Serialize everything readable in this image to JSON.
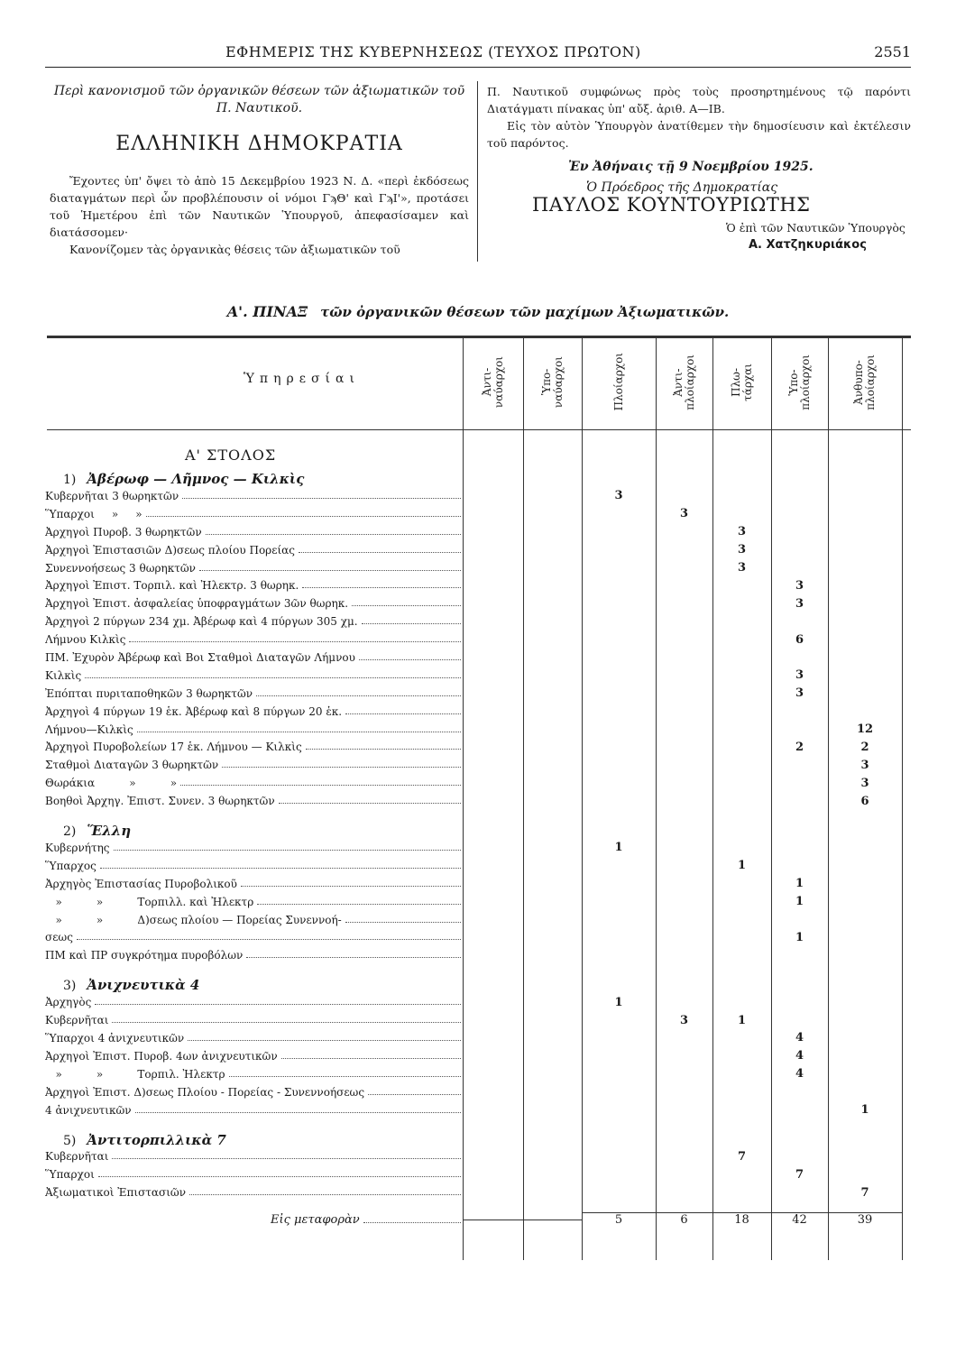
{
  "header": {
    "title": "ΕΦΗΜΕΡΙΣ ΤΗΣ ΚΥΒΕΡΝΗΣΕΩΣ (ΤΕΥΧΟΣ ΠΡΩΤΟΝ)",
    "page": "2551"
  },
  "decree": {
    "subject": "Περὶ κανονισμοῦ τῶν ὀργανικῶν θέσεων τῶν ἀξιωματικῶν τοῦ Π. Ναυτικοῦ.",
    "republic": "ΕΛΛΗΝΙΚΗ ΔΗΜΟΚΡΑΤΙΑ",
    "para1": "Ἔχοντες ὑπ' ὄψει τὸ ἀπὸ 15 Δεκεμβρίου 1923 Ν. Δ. «περὶ ἐκδόσεως διαταγμάτων περὶ ὧν προβλέπουσιν οἱ νόμοι ΓϡΘ' καὶ ΓϡΙ'», προτάσει τοῦ Ἡμετέρου ἐπὶ τῶν Ναυτικῶν Ὑπουργοῦ, ἀπεφασίσαμεν καὶ διατάσσομεν·",
    "para2a": "Κανονίζομεν τὰς ὀργανικὰς θέσεις τῶν ἀξιωματικῶν τοῦ",
    "para2b": "Π. Ναυτικοῦ συμφώνως πρὸς τοὺς προσηρτημένους τῷ παρόντι Διατάγματι πίνακας ὑπ' αὔξ. ἀριθ. Α—ΙΒ.",
    "para3": "Εἰς τὸν αὐτὸν Ὑπουργὸν ἀνατίθεμεν τὴν δημοσίευσιν καὶ ἐκτέλεσιν τοῦ παρόντος.",
    "place_date": "Ἐν Ἀθήναις τῇ 9 Νοεμβρίου 1925.",
    "president_title": "Ὁ Πρόεδρος τῆς Δημοκρατίας",
    "president_name": "ΠΑΥΛΟΣ ΚΟΥΝΤΟΥΡΙΩΤΗΣ",
    "minister_title": "Ὁ ἐπὶ τῶν Ναυτικῶν Ὑπουργὸς",
    "minister_name": "Α. Χατζηκυριάκος"
  },
  "table": {
    "title_prefix": "Α'. ΠΙΝΑΞ",
    "title": "τῶν ὀργανικῶν θέσεων τῶν μαχίμων Ἀξιωματικῶν.",
    "services_header": "Ὑπηρεσίαι",
    "columns": [
      "Ἀντι-\nναύαρχοι",
      "Ὑπο-\nναύαρχοι",
      "Πλοίαρχοι",
      "Ἀντι-\nπλοίαρχοι",
      "Πλω-\nτάρχαι",
      "Ὑπο-\nπλοίαρχοι",
      "Ἀνθυπο-\nπλοίαρχοι"
    ],
    "fleet": "Α' ΣΤΟΛΟΣ",
    "sections": [
      {
        "num": "1)",
        "name": "Ἀβέρωφ — Λῆμνος — Κιλκὶς",
        "rows": [
          {
            "label": "Κυβερνῆται 3 θωρηκτῶν",
            "values": [
              "",
              "",
              "3",
              "",
              "",
              "",
              ""
            ]
          },
          {
            "label": "Ὕπαρχοι     »     »",
            "values": [
              "",
              "",
              "",
              "3",
              "",
              "",
              ""
            ]
          },
          {
            "label": "Ἀρχηγοὶ Πυροβ. 3 θωρηκτῶν",
            "values": [
              "",
              "",
              "",
              "",
              "3",
              "",
              ""
            ]
          },
          {
            "label": "Ἀρχηγοὶ Ἐπιστασιῶν Δ)σεως πλοίου Πορείας",
            "values": [
              "",
              "",
              "",
              "",
              "3",
              "",
              ""
            ]
          },
          {
            "label": "Συνεννοήσεως 3 θωρηκτῶν",
            "values": [
              "",
              "",
              "",
              "",
              "3",
              "",
              ""
            ]
          },
          {
            "label": "Ἀρχηγοὶ Ἐπιστ. Τορπιλ. καὶ Ἠλεκτρ. 3 θωρηκ.",
            "values": [
              "",
              "",
              "",
              "",
              "",
              "3",
              ""
            ]
          },
          {
            "label": "Ἀρχηγοὶ Ἐπιστ. ἀσφαλείας ὑποφραγμάτων 3ῶν θωρηκ.",
            "values": [
              "",
              "",
              "",
              "",
              "",
              "3",
              ""
            ]
          },
          {
            "label": "Ἀρχηγοὶ 2 πύργων 234 χμ. Ἀβέρωφ καὶ 4 πύργων 305 χμ.",
            "values": [
              "",
              "",
              "",
              "",
              "",
              "",
              ""
            ]
          },
          {
            "label": "Λήμνου Κιλκὶς",
            "cont": true,
            "values": [
              "",
              "",
              "",
              "",
              "",
              "6",
              ""
            ]
          },
          {
            "label": "ΠΜ. Ἐχυρὸν Ἀβέρωφ καὶ Βοι Σταθμοὶ Διαταγῶν Λήμνου",
            "values": [
              "",
              "",
              "",
              "",
              "",
              "",
              ""
            ]
          },
          {
            "label": "Κιλκὶς",
            "cont": true,
            "values": [
              "",
              "",
              "",
              "",
              "",
              "3",
              ""
            ]
          },
          {
            "label": "Ἐπόπται πυριταποθηκῶν 3 θωρηκτῶν",
            "values": [
              "",
              "",
              "",
              "",
              "",
              "3",
              ""
            ]
          },
          {
            "label": "Ἀρχηγοὶ 4 πύργων 19 ἑκ. Ἀβέρωφ καὶ 8 πύργων 20 ἑκ.",
            "values": [
              "",
              "",
              "",
              "",
              "",
              "",
              ""
            ]
          },
          {
            "label": "Λήμνου—Κιλκὶς",
            "cont": true,
            "values": [
              "",
              "",
              "",
              "",
              "",
              "",
              "12"
            ]
          },
          {
            "label": "Ἀρχηγοὶ Πυροβολείων 17 ἑκ. Λήμνου — Κιλκὶς",
            "values": [
              "",
              "",
              "",
              "",
              "",
              "2",
              "2"
            ]
          },
          {
            "label": "Σταθμοὶ Διαταγῶν 3 θωρηκτῶν",
            "values": [
              "",
              "",
              "",
              "",
              "",
              "",
              "3"
            ]
          },
          {
            "label": "Θωράκια          »          »",
            "values": [
              "",
              "",
              "",
              "",
              "",
              "",
              "3"
            ]
          },
          {
            "label": "Βοηθοὶ Ἀρχηγ. Ἐπιστ. Συνεν. 3 θωρηκτῶν",
            "values": [
              "",
              "",
              "",
              "",
              "",
              "",
              "6"
            ]
          }
        ]
      },
      {
        "num": "2)",
        "name": "Ἕλλη",
        "rows": [
          {
            "label": "Κυβερνήτης",
            "values": [
              "",
              "",
              "1",
              "",
              "",
              "",
              ""
            ]
          },
          {
            "label": "Ὕπαρχος",
            "values": [
              "",
              "",
              "",
              "",
              "1",
              "",
              ""
            ]
          },
          {
            "label": "Ἀρχηγὸς Ἐπιστασίας Πυροβολικοῦ",
            "values": [
              "",
              "",
              "",
              "",
              "",
              "1",
              ""
            ]
          },
          {
            "label": "   »          »          Τορπιλλ. καὶ Ἠλεκτρ",
            "values": [
              "",
              "",
              "",
              "",
              "",
              "1",
              ""
            ]
          },
          {
            "label": "   »          »          Δ)σεως πλοίου — Πορείας Συνεννοή-",
            "values": [
              "",
              "",
              "",
              "",
              "",
              "",
              ""
            ]
          },
          {
            "label": "σεως",
            "cont": true,
            "values": [
              "",
              "",
              "",
              "",
              "",
              "1",
              ""
            ]
          },
          {
            "label": "ΠΜ καὶ ΠΡ συγκρότημα πυροβόλων",
            "values": [
              "",
              "",
              "",
              "",
              "",
              "",
              ""
            ]
          }
        ]
      },
      {
        "num": "3)",
        "name": "Ἀνιχνευτικὰ 4",
        "rows": [
          {
            "label": "Ἀρχηγὸς",
            "values": [
              "",
              "",
              "1",
              "",
              "",
              "",
              ""
            ]
          },
          {
            "label": "Κυβερνῆται",
            "values": [
              "",
              "",
              "",
              "3",
              "1",
              "",
              ""
            ]
          },
          {
            "label": "Ὕπαρχοι 4 ἀνιχνευτικῶν",
            "values": [
              "",
              "",
              "",
              "",
              "",
              "4",
              ""
            ]
          },
          {
            "label": "Ἀρχηγοὶ Ἐπιστ. Πυροβ. 4ων ἀνιχνευτικῶν",
            "values": [
              "",
              "",
              "",
              "",
              "",
              "4",
              ""
            ]
          },
          {
            "label": "   »          »          Τορπιλ. Ἠλεκτρ",
            "values": [
              "",
              "",
              "",
              "",
              "",
              "4",
              ""
            ]
          },
          {
            "label": "Ἀρχηγοὶ Ἐπιστ. Δ)σεως Πλοίου - Πορείας - Συνεννοήσεως",
            "values": [
              "",
              "",
              "",
              "",
              "",
              "",
              ""
            ]
          },
          {
            "label": "4 ἀνιχνευτικῶν",
            "cont": true,
            "values": [
              "",
              "",
              "",
              "",
              "",
              "",
              "1"
            ]
          }
        ]
      },
      {
        "num": "5)",
        "name": "Ἀντιτορπιλλικὰ 7",
        "rows": [
          {
            "label": "Κυβερνῆται",
            "values": [
              "",
              "",
              "",
              "",
              "7",
              "",
              ""
            ]
          },
          {
            "label": "Ὕπαρχοι",
            "values": [
              "",
              "",
              "",
              "",
              "",
              "7",
              ""
            ]
          },
          {
            "label": "Ἀξιωματικοὶ Ἐπιστασιῶν",
            "values": [
              "",
              "",
              "",
              "",
              "",
              "",
              "7"
            ]
          }
        ]
      }
    ],
    "total": {
      "label": "Εἰς μεταφορὰν",
      "values": [
        "",
        "",
        "5",
        "6",
        "18",
        "42",
        "39"
      ]
    }
  }
}
